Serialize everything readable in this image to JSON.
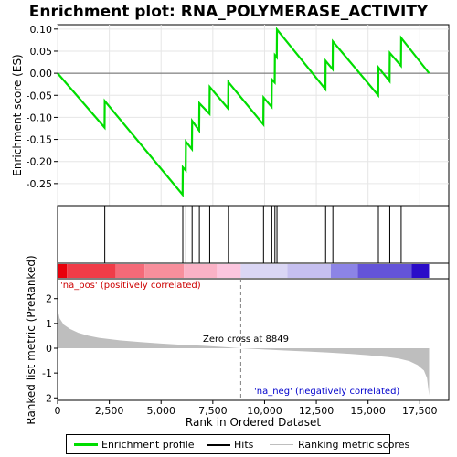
{
  "chart_data": {
    "type": "line",
    "title": "Enrichment plot: RNA_POLYMERASE_ACTIVITY",
    "xlabel": "Rank in Ordered Dataset",
    "ylabel_top": "Enrichment score (ES)",
    "ylabel_bottom": "Ranked list metric (PreRanked)",
    "xlim": [
      0,
      18900
    ],
    "ylim_top": [
      -0.3,
      0.11
    ],
    "ylim_bottom": [
      -2.1,
      2.8
    ],
    "x_ticks": [
      0,
      2500,
      5000,
      7500,
      10000,
      12500,
      15000,
      17500
    ],
    "x_tick_labels": [
      "0",
      "2,500",
      "5,000",
      "7,500",
      "10,000",
      "12,500",
      "15,000",
      "17,500"
    ],
    "y_ticks_top": [
      0.1,
      0.05,
      0.0,
      -0.05,
      -0.1,
      -0.15,
      -0.2,
      -0.25
    ],
    "y_tick_labels_top": [
      "0.10",
      "0.05",
      "0.00",
      "-0.05",
      "-0.10",
      "-0.15",
      "-0.20",
      "-0.25"
    ],
    "y_ticks_bottom": [
      2,
      1,
      0,
      -1,
      -2
    ],
    "y_tick_labels_bottom": [
      "2",
      "1",
      "0",
      "-1",
      "-2"
    ],
    "hits": [
      2280,
      6050,
      6200,
      6500,
      6850,
      7350,
      8250,
      9950,
      10350,
      10500,
      10600,
      12950,
      13300,
      15500,
      16050,
      16600
    ],
    "es_curve": [
      [
        0,
        0.0
      ],
      [
        2270,
        -0.123
      ],
      [
        2280,
        -0.063
      ],
      [
        6040,
        -0.275
      ],
      [
        6050,
        -0.213
      ],
      [
        6190,
        -0.22
      ],
      [
        6200,
        -0.155
      ],
      [
        6490,
        -0.172
      ],
      [
        6500,
        -0.108
      ],
      [
        6840,
        -0.13
      ],
      [
        6850,
        -0.068
      ],
      [
        7340,
        -0.092
      ],
      [
        7350,
        -0.031
      ],
      [
        8240,
        -0.08
      ],
      [
        8250,
        -0.02
      ],
      [
        9940,
        -0.116
      ],
      [
        9950,
        -0.055
      ],
      [
        10340,
        -0.076
      ],
      [
        10350,
        -0.014
      ],
      [
        10490,
        -0.021
      ],
      [
        10500,
        0.041
      ],
      [
        10590,
        0.036
      ],
      [
        10600,
        0.099
      ],
      [
        12940,
        -0.036
      ],
      [
        12950,
        0.028
      ],
      [
        13290,
        0.009
      ],
      [
        13300,
        0.072
      ],
      [
        15490,
        -0.05
      ],
      [
        15500,
        0.013
      ],
      [
        16040,
        -0.018
      ],
      [
        16050,
        0.046
      ],
      [
        16590,
        0.017
      ],
      [
        16600,
        0.08
      ],
      [
        17950,
        0.0
      ]
    ],
    "metric_curve": [
      [
        0,
        1.6
      ],
      [
        100,
        1.2
      ],
      [
        300,
        0.95
      ],
      [
        600,
        0.78
      ],
      [
        1000,
        0.62
      ],
      [
        1500,
        0.5
      ],
      [
        2000,
        0.42
      ],
      [
        3000,
        0.32
      ],
      [
        4000,
        0.25
      ],
      [
        5000,
        0.19
      ],
      [
        6000,
        0.14
      ],
      [
        7000,
        0.1
      ],
      [
        8000,
        0.05
      ],
      [
        8849,
        0.0
      ],
      [
        10000,
        -0.05
      ],
      [
        11000,
        -0.09
      ],
      [
        12000,
        -0.13
      ],
      [
        13000,
        -0.17
      ],
      [
        14000,
        -0.22
      ],
      [
        15000,
        -0.28
      ],
      [
        16000,
        -0.36
      ],
      [
        16500,
        -0.42
      ],
      [
        17000,
        -0.52
      ],
      [
        17400,
        -0.68
      ],
      [
        17700,
        -0.9
      ],
      [
        17850,
        -1.2
      ],
      [
        17950,
        -1.9
      ]
    ],
    "heatmap_segments": [
      {
        "from": 0,
        "to": 450,
        "color": "#e8000b"
      },
      {
        "from": 450,
        "to": 2800,
        "color": "#f03c48"
      },
      {
        "from": 2800,
        "to": 4200,
        "color": "#f46a78"
      },
      {
        "from": 4200,
        "to": 6100,
        "color": "#f78f9c"
      },
      {
        "from": 6100,
        "to": 7700,
        "color": "#fab2c6"
      },
      {
        "from": 7700,
        "to": 8850,
        "color": "#fcc6df"
      },
      {
        "from": 8850,
        "to": 11100,
        "color": "#dad6f4"
      },
      {
        "from": 11100,
        "to": 13200,
        "color": "#c6c0f0"
      },
      {
        "from": 13200,
        "to": 14500,
        "color": "#8c84e6"
      },
      {
        "from": 14500,
        "to": 17100,
        "color": "#6454d8"
      },
      {
        "from": 17100,
        "to": 17950,
        "color": "#2a0cc8"
      }
    ],
    "zero_cross_label": "Zero cross at 8849",
    "pos_label": "'na_pos' (positively correlated)",
    "neg_label": "'na_neg' (negatively correlated)",
    "colors": {
      "es_line": "#00dd00",
      "hit_line": "#000000",
      "metric_fill": "#bebebe",
      "pos_label": "#cc0000",
      "neg_label": "#0000cc",
      "zero_line": "#808080"
    }
  },
  "legend": {
    "items": [
      "Enrichment profile",
      "Hits",
      "Ranking metric scores"
    ]
  }
}
